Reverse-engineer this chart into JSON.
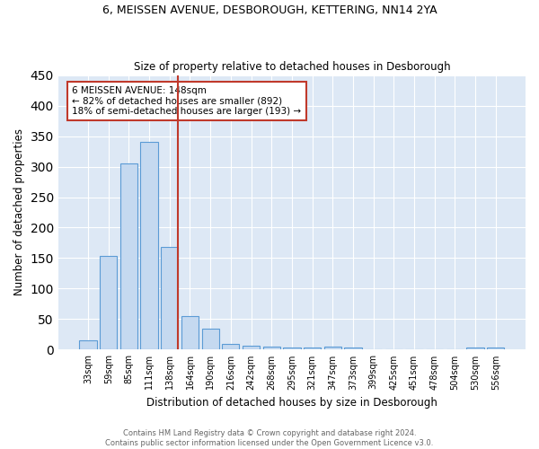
{
  "title1": "6, MEISSEN AVENUE, DESBOROUGH, KETTERING, NN14 2YA",
  "title2": "Size of property relative to detached houses in Desborough",
  "xlabel": "Distribution of detached houses by size in Desborough",
  "ylabel": "Number of detached properties",
  "bar_labels": [
    "33sqm",
    "59sqm",
    "85sqm",
    "111sqm",
    "138sqm",
    "164sqm",
    "190sqm",
    "216sqm",
    "242sqm",
    "268sqm",
    "295sqm",
    "321sqm",
    "347sqm",
    "373sqm",
    "399sqm",
    "425sqm",
    "451sqm",
    "478sqm",
    "504sqm",
    "530sqm",
    "556sqm"
  ],
  "bar_values": [
    15,
    153,
    305,
    340,
    168,
    55,
    35,
    9,
    7,
    5,
    3,
    4,
    5,
    3,
    0,
    0,
    0,
    0,
    0,
    4,
    3
  ],
  "bar_color": "#c5d9f0",
  "bar_edge_color": "#5b9bd5",
  "vline_color": "#c0392b",
  "annotation_line1": "6 MEISSEN AVENUE: 148sqm",
  "annotation_line2": "← 82% of detached houses are smaller (892)",
  "annotation_line3": "18% of semi-detached houses are larger (193) →",
  "annotation_box_color": "white",
  "annotation_box_edge_color": "#c0392b",
  "footer_text": "Contains HM Land Registry data © Crown copyright and database right 2024.\nContains public sector information licensed under the Open Government Licence v3.0.",
  "bg_color": "#dde8f5",
  "grid_color": "white",
  "ylim": [
    0,
    450
  ],
  "yticks": [
    0,
    50,
    100,
    150,
    200,
    250,
    300,
    350,
    400,
    450
  ]
}
